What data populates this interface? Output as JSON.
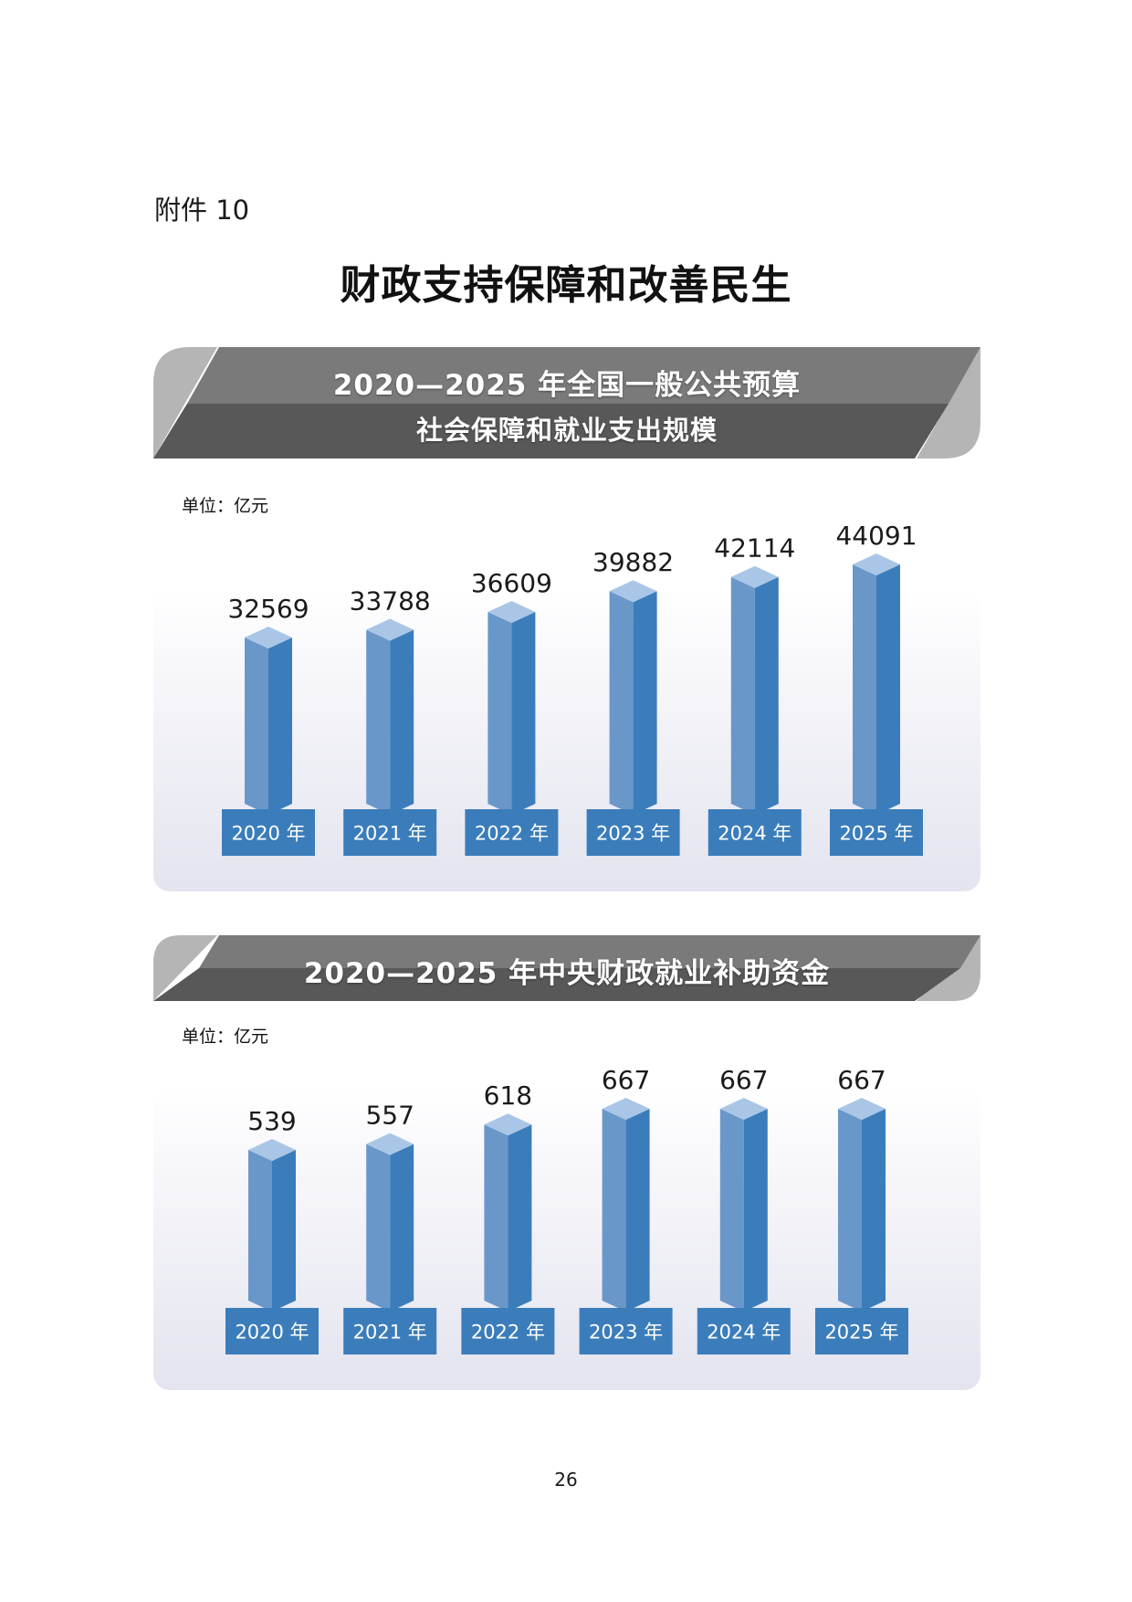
{
  "annex_label": "附件 10",
  "document_title": "财政支持保障和改善民生",
  "page_number": "26",
  "colors": {
    "bar_front": "#6a97c9",
    "bar_side": "#3b7dbb",
    "bar_top": "#a9c6e6",
    "year_box": "#3b7dbb",
    "banner_dark": "#585858",
    "banner_light": "#7a7a7a",
    "banner_accent": "#b5b5b5"
  },
  "sections": [
    {
      "title_lines": [
        "2020—2025 年全国一般公共预算",
        "社会保障和就业支出规模"
      ],
      "unit": "单位：亿元"
    },
    {
      "title_lines": [
        "2020—2025 年中央财政就业补助资金"
      ],
      "unit": "单位：亿元"
    }
  ],
  "chart_data": [
    {
      "type": "bar",
      "title": "2020—2025 年全国一般公共预算社会保障和就业支出规模",
      "unit": "亿元",
      "categories": [
        "2020 年",
        "2021 年",
        "2022 年",
        "2023 年",
        "2024 年",
        "2025 年"
      ],
      "values": [
        32569,
        33788,
        36609,
        39882,
        42114,
        44091
      ],
      "grid": false,
      "legend": "none"
    },
    {
      "type": "bar",
      "title": "2020—2025 年中央财政就业补助资金",
      "unit": "亿元",
      "categories": [
        "2020 年",
        "2021 年",
        "2022 年",
        "2023 年",
        "2024 年",
        "2025 年"
      ],
      "values": [
        539,
        557,
        618,
        667,
        667,
        667
      ],
      "grid": false,
      "legend": "none"
    }
  ]
}
